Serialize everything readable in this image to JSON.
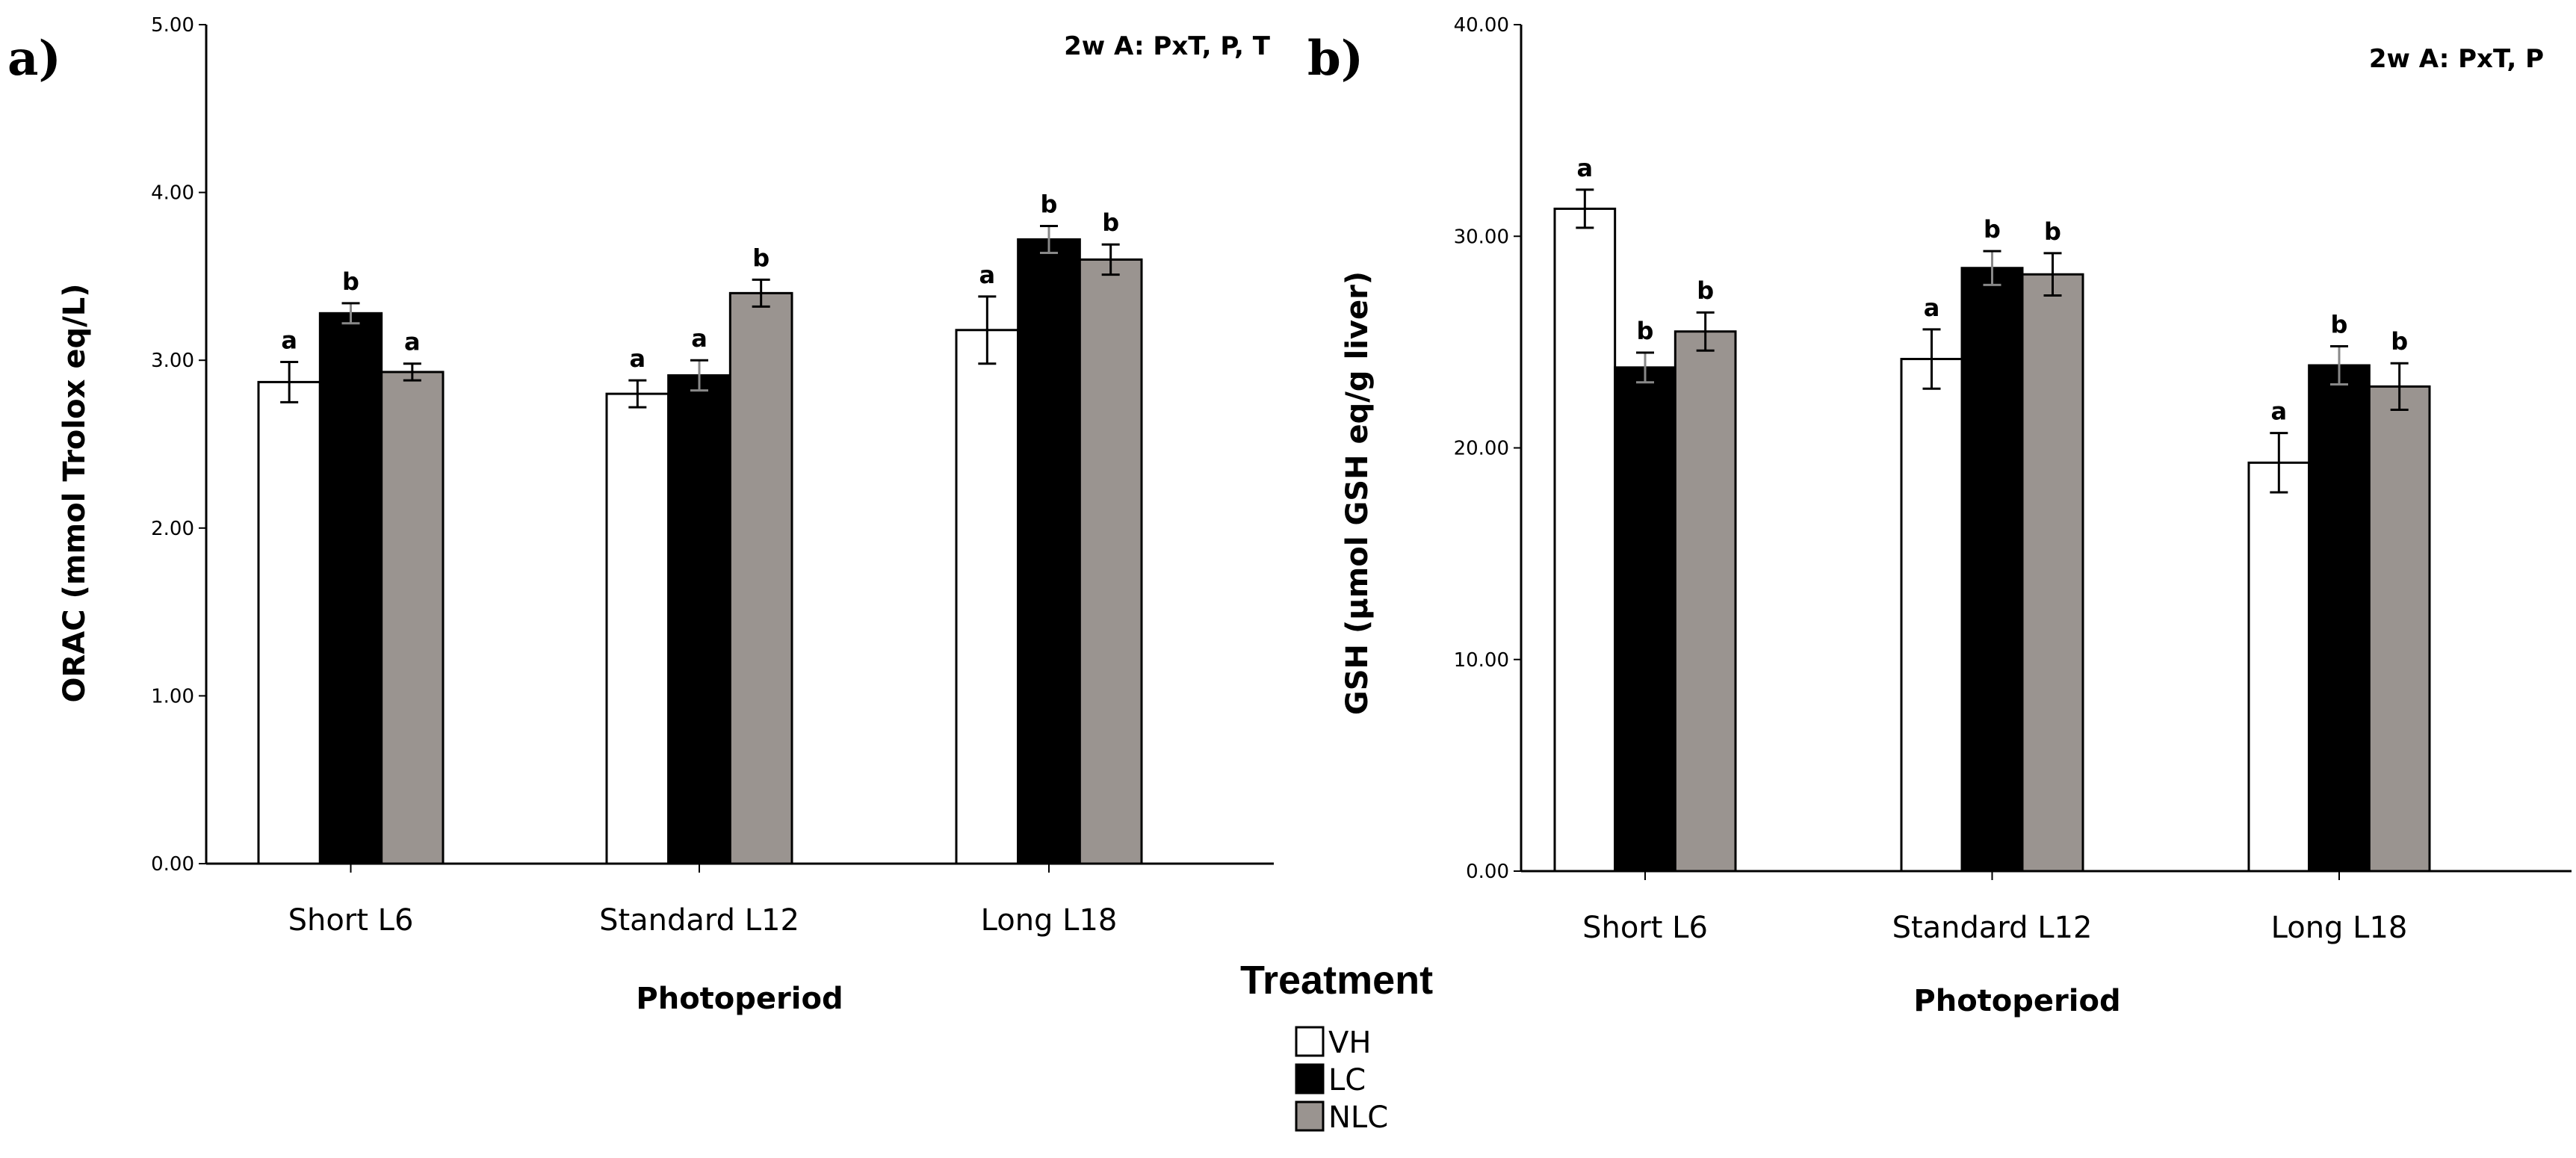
{
  "chart_data": [
    {
      "type": "bar",
      "panel_label": "a)",
      "annotation": "2w A: PxT, P, T",
      "xlabel": "Photoperiod",
      "ylabel": "ORAC (mmol Trolox eq/L)",
      "ylim": [
        0,
        5
      ],
      "yticks": [
        "0.00",
        "1.00",
        "2.00",
        "3.00",
        "4.00",
        "5.00"
      ],
      "categories": [
        "Short L6",
        "Standard L12",
        "Long L18"
      ],
      "series": [
        {
          "name": "VH",
          "values": [
            2.87,
            2.8,
            3.18
          ],
          "errors": [
            0.12,
            0.08,
            0.2
          ],
          "labels": [
            "a",
            "a",
            "a"
          ]
        },
        {
          "name": "LC",
          "values": [
            3.28,
            2.91,
            3.72
          ],
          "errors": [
            0.06,
            0.09,
            0.08
          ],
          "labels": [
            "b",
            "a",
            "b"
          ]
        },
        {
          "name": "NLC",
          "values": [
            2.93,
            3.4,
            3.6
          ],
          "errors": [
            0.05,
            0.08,
            0.09
          ],
          "labels": [
            "a",
            "b",
            "b"
          ]
        }
      ]
    },
    {
      "type": "bar",
      "panel_label": "b)",
      "annotation": "2w A: PxT, P",
      "xlabel": "Photoperiod",
      "ylabel": "GSH (μmol GSH eq/g liver)",
      "ylim": [
        0,
        40
      ],
      "yticks": [
        "0.00",
        "10.00",
        "20.00",
        "30.00",
        "40.00"
      ],
      "categories": [
        "Short L6",
        "Standard L12",
        "Long L18"
      ],
      "series": [
        {
          "name": "VH",
          "values": [
            31.3,
            24.2,
            19.3
          ],
          "errors": [
            0.9,
            1.4,
            1.4
          ],
          "labels": [
            "a",
            "a",
            "a"
          ]
        },
        {
          "name": "LC",
          "values": [
            23.8,
            28.5,
            23.9
          ],
          "errors": [
            0.7,
            0.8,
            0.9
          ],
          "labels": [
            "b",
            "b",
            "b"
          ]
        },
        {
          "name": "NLC",
          "values": [
            25.5,
            28.2,
            22.9
          ],
          "errors": [
            0.9,
            1.0,
            1.1
          ],
          "labels": [
            "b",
            "b",
            "b"
          ]
        }
      ]
    }
  ],
  "legend": {
    "title": "Treatment",
    "items": [
      {
        "name": "VH",
        "color": "#ffffff"
      },
      {
        "name": "LC",
        "color": "#000000"
      },
      {
        "name": "NLC",
        "color": "#9a9490"
      }
    ]
  }
}
